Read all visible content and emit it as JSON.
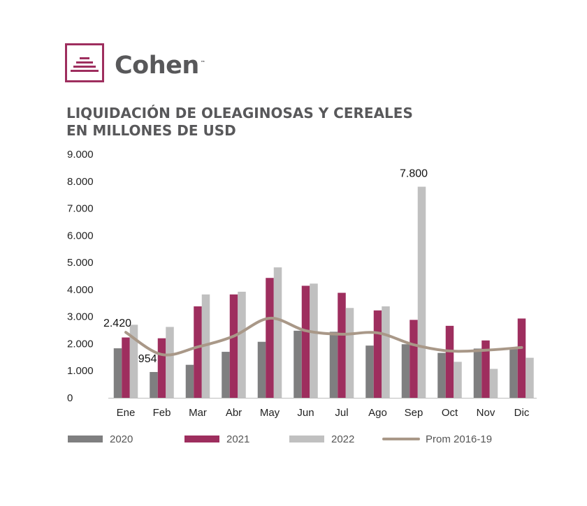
{
  "brand": {
    "name": "Cohen",
    "tm": "™"
  },
  "title_lines": [
    "LIQUIDACIÓN DE OLEAGINOSAS Y CEREALES",
    "EN MILLONES DE USD"
  ],
  "colors": {
    "2020": "#7f7f80",
    "2021": "#9e2e5e",
    "2022": "#c0c0c0",
    "avg": "#a99888",
    "logo": "#9e2e5e",
    "title": "#58585a"
  },
  "chart_data": {
    "type": "bar",
    "title": "LIQUIDACIÓN DE OLEAGINOSAS Y CEREALES EN MILLONES DE USD",
    "categories": [
      "Ene",
      "Feb",
      "Mar",
      "Abr",
      "May",
      "Jun",
      "Jul",
      "Ago",
      "Sep",
      "Oct",
      "Nov",
      "Dic"
    ],
    "ylim": [
      0,
      9000
    ],
    "yticks": [
      0,
      1000,
      2000,
      3000,
      4000,
      5000,
      6000,
      7000,
      8000,
      9000
    ],
    "ytick_labels": [
      "0",
      "1.000",
      "2.000",
      "3.000",
      "4.000",
      "5.000",
      "6.000",
      "7.000",
      "8.000",
      "9.000"
    ],
    "grid": false,
    "legend_position": "bottom",
    "series": [
      {
        "name": "2020",
        "type": "bar",
        "values": [
          1830,
          954,
          1220,
          1700,
          2070,
          2480,
          2440,
          1930,
          1980,
          1660,
          1820,
          1830
        ]
      },
      {
        "name": "2021",
        "type": "bar",
        "values": [
          2230,
          2200,
          3380,
          3820,
          4430,
          4140,
          3880,
          3230,
          2880,
          2660,
          2120,
          2930
        ]
      },
      {
        "name": "2022",
        "type": "bar",
        "values": [
          2700,
          2620,
          3820,
          3920,
          4820,
          4220,
          3320,
          3380,
          7800,
          1330,
          1070,
          1480
        ]
      },
      {
        "name": "Prom 2016-19",
        "type": "line",
        "values": [
          2420,
          1600,
          1880,
          2280,
          2940,
          2480,
          2350,
          2400,
          1960,
          1730,
          1760,
          1860
        ]
      }
    ],
    "annotations": [
      {
        "label": "2.420",
        "category": "Ene",
        "value": 2420
      },
      {
        "label": "954",
        "category": "Feb",
        "value": 954
      },
      {
        "label": "7.800",
        "category": "Sep",
        "value": 7800
      }
    ]
  }
}
